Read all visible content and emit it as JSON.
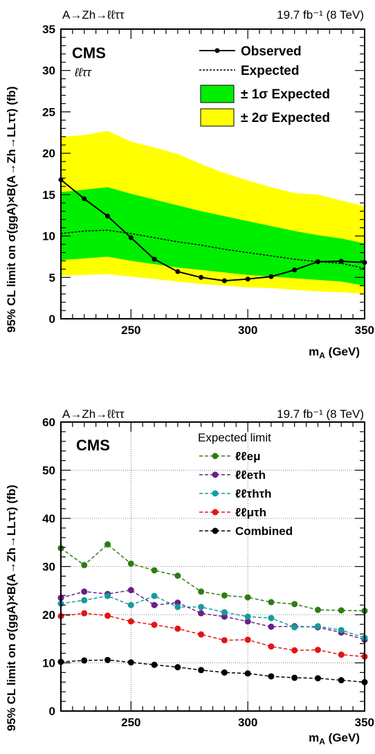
{
  "charts": [
    {
      "header_left": "A→Zh→ℓℓττ",
      "header_right": "19.7 fb⁻¹ (8 TeV)",
      "cms_label": "CMS",
      "channel_label": "ℓℓττ",
      "ylabel": "95% CL limit on σ(ggA)×B(A→Zh→LLττ) (fb)",
      "xlabel": "m_A (GeV)",
      "xticks": [
        "250",
        "300",
        "350"
      ],
      "yticks": [
        "0",
        "5",
        "10",
        "15",
        "20",
        "25",
        "30",
        "35"
      ],
      "legend": {
        "observed": "Observed",
        "expected": "Expected",
        "one_sigma": "± 1σ Expected",
        "two_sigma": "± 2σ Expected"
      }
    },
    {
      "header_left": "A→Zh→ℓℓττ",
      "header_right": "19.7 fb⁻¹ (8 TeV)",
      "cms_label": "CMS",
      "ylabel": "95% CL limit on σ(ggA)×B(A→Zh→LLττ) (fb)",
      "xlabel": "m_A (GeV)",
      "xticks": [
        "250",
        "300",
        "350"
      ],
      "yticks": [
        "0",
        "10",
        "20",
        "30",
        "40",
        "50",
        "60"
      ],
      "legend_header": "Expected limit",
      "legend": [
        "ℓℓeμ",
        "ℓℓeτh",
        "ℓℓτhτh",
        "ℓℓμτh",
        "Combined"
      ]
    }
  ],
  "chart_data": [
    {
      "type": "line",
      "x": [
        220,
        230,
        240,
        250,
        260,
        270,
        280,
        290,
        300,
        310,
        320,
        330,
        340,
        350
      ],
      "series": [
        {
          "name": "Observed",
          "values": [
            16.8,
            14.5,
            12.4,
            9.8,
            7.2,
            5.7,
            5.0,
            4.6,
            4.8,
            5.1,
            5.9,
            6.9,
            6.95,
            6.8
          ]
        },
        {
          "name": "Expected",
          "values": [
            10.3,
            10.6,
            10.7,
            10.3,
            9.8,
            9.3,
            8.9,
            8.4,
            8.0,
            7.6,
            7.2,
            6.9,
            6.7,
            6.1
          ]
        },
        {
          "name": "± 1σ Expected",
          "lower": [
            7.1,
            7.3,
            7.5,
            7.0,
            6.6,
            6.2,
            5.9,
            5.6,
            5.3,
            5.1,
            4.9,
            4.7,
            4.5,
            4.0
          ],
          "upper": [
            15.3,
            15.6,
            15.9,
            15.1,
            14.4,
            13.7,
            13.0,
            12.4,
            11.8,
            11.2,
            10.6,
            10.1,
            9.7,
            9.1
          ]
        },
        {
          "name": "± 2σ Expected",
          "lower": [
            5.2,
            5.3,
            5.4,
            5.1,
            4.8,
            4.5,
            4.2,
            4.0,
            3.8,
            3.7,
            3.5,
            3.3,
            3.2,
            3.0
          ],
          "upper": [
            22.0,
            22.2,
            22.7,
            21.4,
            20.7,
            19.9,
            18.7,
            17.6,
            16.7,
            15.9,
            15.2,
            15.0,
            14.3,
            13.6
          ]
        }
      ],
      "xlim": [
        220,
        350
      ],
      "ylim": [
        0,
        35
      ]
    },
    {
      "type": "line",
      "x": [
        220,
        230,
        240,
        250,
        260,
        270,
        280,
        290,
        300,
        310,
        320,
        330,
        340,
        350
      ],
      "series": [
        {
          "name": "ℓℓeμ",
          "color": "#2e7d14",
          "values": [
            33.8,
            30.3,
            34.6,
            30.6,
            29.2,
            28.1,
            24.8,
            24.0,
            23.6,
            22.6,
            22.2,
            21.0,
            20.9,
            20.8
          ]
        },
        {
          "name": "ℓℓeτh",
          "color": "#6a1f8a",
          "values": [
            23.5,
            24.8,
            24.3,
            25.1,
            22.0,
            22.5,
            20.3,
            19.6,
            18.6,
            17.5,
            17.6,
            17.4,
            16.3,
            14.8
          ]
        },
        {
          "name": "ℓℓτhτh",
          "color": "#169b9b",
          "values": [
            22.3,
            23.0,
            23.9,
            22.0,
            23.9,
            21.6,
            21.6,
            20.5,
            19.6,
            19.3,
            17.4,
            17.6,
            16.8,
            15.2
          ]
        },
        {
          "name": "ℓℓμτh",
          "color": "#e51414",
          "values": [
            19.7,
            20.3,
            19.8,
            18.6,
            17.9,
            17.1,
            15.9,
            14.7,
            14.8,
            13.4,
            12.6,
            12.7,
            11.7,
            11.3
          ]
        },
        {
          "name": "Combined",
          "color": "#000000",
          "values": [
            10.2,
            10.5,
            10.6,
            10.1,
            9.6,
            9.1,
            8.5,
            8.0,
            7.8,
            7.2,
            6.9,
            6.8,
            6.4,
            6.0
          ]
        }
      ],
      "xlim": [
        220,
        350
      ],
      "ylim": [
        0,
        60
      ],
      "grid": true
    }
  ]
}
